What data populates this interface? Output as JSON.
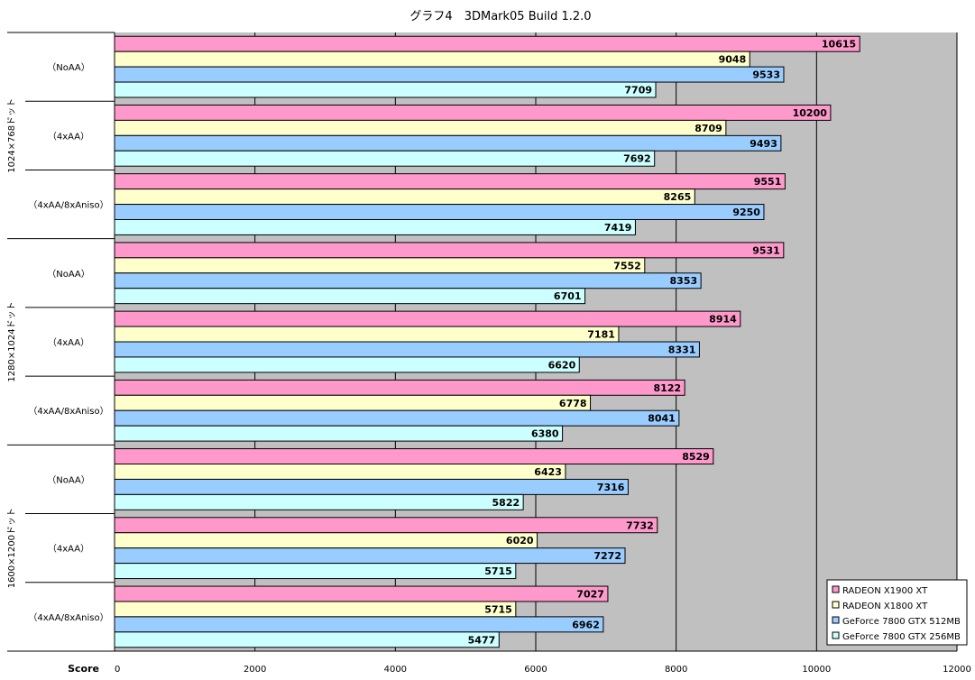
{
  "chart_data": {
    "type": "bar",
    "orientation": "horizontal",
    "title": "グラフ4　3DMark05 Build 1.2.0",
    "xlabel": "Score",
    "xlim": [
      0,
      12000
    ],
    "ticks": [
      0,
      2000,
      4000,
      6000,
      8000,
      10000,
      12000
    ],
    "grid": true,
    "legend_position": "bottom-right",
    "groups": [
      {
        "label": "1024×768ドット",
        "categories": [
          "（NoAA）",
          "（4xAA）",
          "（4xAA/8xAniso）"
        ]
      },
      {
        "label": "1280×1024ドット",
        "categories": [
          "（NoAA）",
          "（4xAA）",
          "（4xAA/8xAniso）"
        ]
      },
      {
        "label": "1600×1200ドット",
        "categories": [
          "（NoAA）",
          "（4xAA）",
          "（4xAA/8xAniso）"
        ]
      }
    ],
    "series": [
      {
        "name": "RADEON X1900 XT",
        "color": "#ff99cc",
        "values": [
          10615,
          10200,
          9551,
          9531,
          8914,
          8122,
          8529,
          7732,
          7027
        ]
      },
      {
        "name": "RADEON X1800 XT",
        "color": "#ffffcc",
        "values": [
          9048,
          8709,
          8265,
          7552,
          7181,
          6778,
          6423,
          6020,
          5715
        ]
      },
      {
        "name": "GeForce 7800 GTX 512MB",
        "color": "#99ccff",
        "values": [
          9533,
          9493,
          9250,
          8353,
          8331,
          8041,
          7316,
          7272,
          6962
        ]
      },
      {
        "name": "GeForce 7800 GTX 256MB",
        "color": "#ccffff",
        "values": [
          7709,
          7692,
          7419,
          6701,
          6620,
          6380,
          5822,
          5715,
          5477
        ]
      }
    ]
  },
  "colors": {
    "plot_background": "#c0c0c0",
    "gridline": "#000000"
  }
}
